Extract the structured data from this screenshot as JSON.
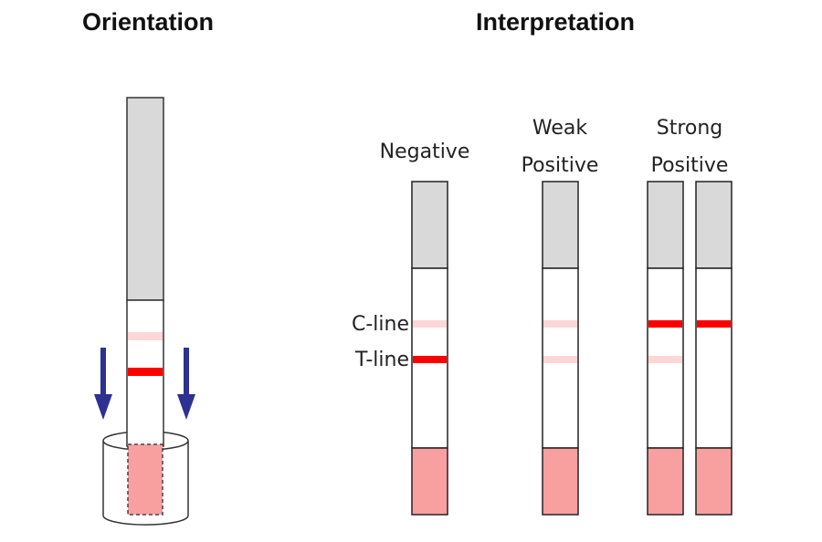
{
  "titles": {
    "orientation": "Orientation",
    "interpretation": "Interpretation"
  },
  "labels": {
    "negative": "Negative",
    "weak_line1": "Weak",
    "weak_line2": "Positive",
    "strong_line1": "Strong",
    "strong_line2": "Positive",
    "c_line": "C-line",
    "t_line": "T-line"
  },
  "colors": {
    "handle": "#d9d9d9",
    "sample_pad": "#f8a0a0",
    "strong_line": "#ff0000",
    "faint_line": "#ffd6d6",
    "arrow": "#2e3192"
  },
  "strips": [
    {
      "result": "Negative",
      "c_line": "faint",
      "t_line": "strong"
    },
    {
      "result": "Weak Positive",
      "c_line": "faint",
      "t_line": "faint"
    },
    {
      "result": "Strong Positive",
      "c_line": "strong",
      "t_line": "faint"
    },
    {
      "result": "Strong Positive",
      "c_line": "strong",
      "t_line": "none"
    }
  ]
}
